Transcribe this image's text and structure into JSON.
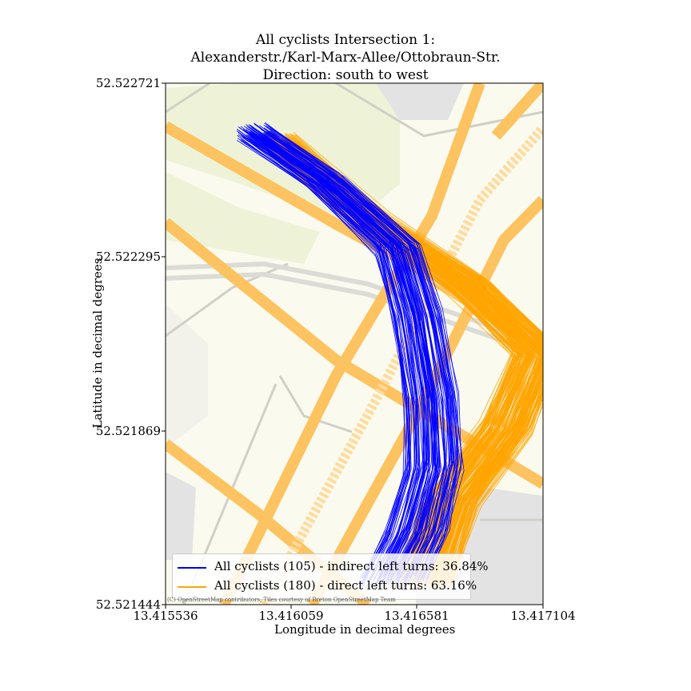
{
  "title_lines": [
    "All cyclists Intersection 1:",
    "Alexanderstr./Karl-Marx-Allee/Ottobraun-Str.",
    "Direction: south to west"
  ],
  "attribution": "(C) OpenStreetMap contributors, Tiles courtesy of Breton OpenStreetMap Team",
  "colors": {
    "indirect": "#0000ff",
    "direct": "#ffa500",
    "map_bg": "#fbfaee",
    "road_major": "#fdc360",
    "park": "#eef3d8",
    "building": "#e3e3e3"
  },
  "chart_data": {
    "type": "line",
    "xlabel": "Longitude in decimal degrees",
    "ylabel": "Latitude in decimal degrees",
    "xlim": [
      13.415536,
      13.417104
    ],
    "ylim": [
      52.521444,
      52.522721
    ],
    "xticks": [
      "13.415536",
      "13.416059",
      "13.416581",
      "13.417104"
    ],
    "yticks": [
      "52.522721",
      "52.522295",
      "52.521869",
      "52.521444"
    ],
    "legend_position": "lower left",
    "grid": false,
    "series": [
      {
        "name": "All cyclists (105) - indirect left turns: 36.84%",
        "color": "#0000ff",
        "count": 105,
        "share_percent": 36.84,
        "representative_path": [
          [
            13.4159,
            52.5226
          ],
          [
            13.4162,
            52.52248
          ],
          [
            13.4165,
            52.52232
          ],
          [
            13.41658,
            52.52215
          ],
          [
            13.41664,
            52.52195
          ],
          [
            13.41665,
            52.52178
          ],
          [
            13.41658,
            52.52162
          ],
          [
            13.41648,
            52.5215
          ]
        ]
      },
      {
        "name": "All cyclists (180) - direct left turns: 63.16%",
        "color": "#ffa500",
        "count": 180,
        "share_percent": 63.16,
        "representative_path": [
          [
            13.416,
            52.52258
          ],
          [
            13.4164,
            52.52238
          ],
          [
            13.4168,
            52.52222
          ],
          [
            13.41708,
            52.52206
          ],
          [
            13.41695,
            52.52188
          ],
          [
            13.41672,
            52.5217
          ],
          [
            13.4166,
            52.5215
          ]
        ]
      }
    ]
  }
}
